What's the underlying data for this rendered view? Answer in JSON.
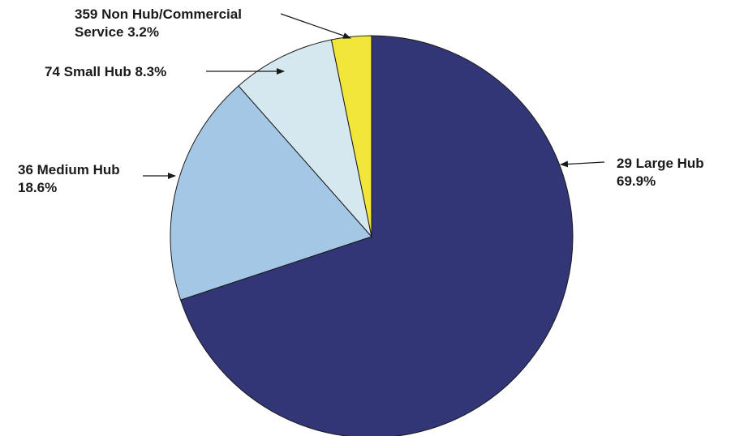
{
  "chart_data": {
    "type": "pie",
    "title": "",
    "start": "top (12 o'clock)",
    "direction": "clockwise",
    "slices": [
      {
        "label_line1": "29 Large Hub",
        "label_line2": "69.9%",
        "count": 29,
        "category": "Large Hub",
        "value": 69.9,
        "color": "#323576"
      },
      {
        "label_line1": "36 Medium Hub",
        "label_line2": "18.6%",
        "count": 36,
        "category": "Medium Hub",
        "value": 18.6,
        "color": "#a3c7e4"
      },
      {
        "label_line1": "74 Small Hub 8.3%",
        "label_line2": "",
        "count": 74,
        "category": "Small Hub",
        "value": 8.3,
        "color": "#d5e8ef"
      },
      {
        "label_line1": "359 Non Hub/Commercial",
        "label_line2": "Service 3.2%",
        "count": 359,
        "category": "Non Hub/Commercial Service",
        "value": 3.2,
        "color": "#f2e63a"
      }
    ]
  }
}
